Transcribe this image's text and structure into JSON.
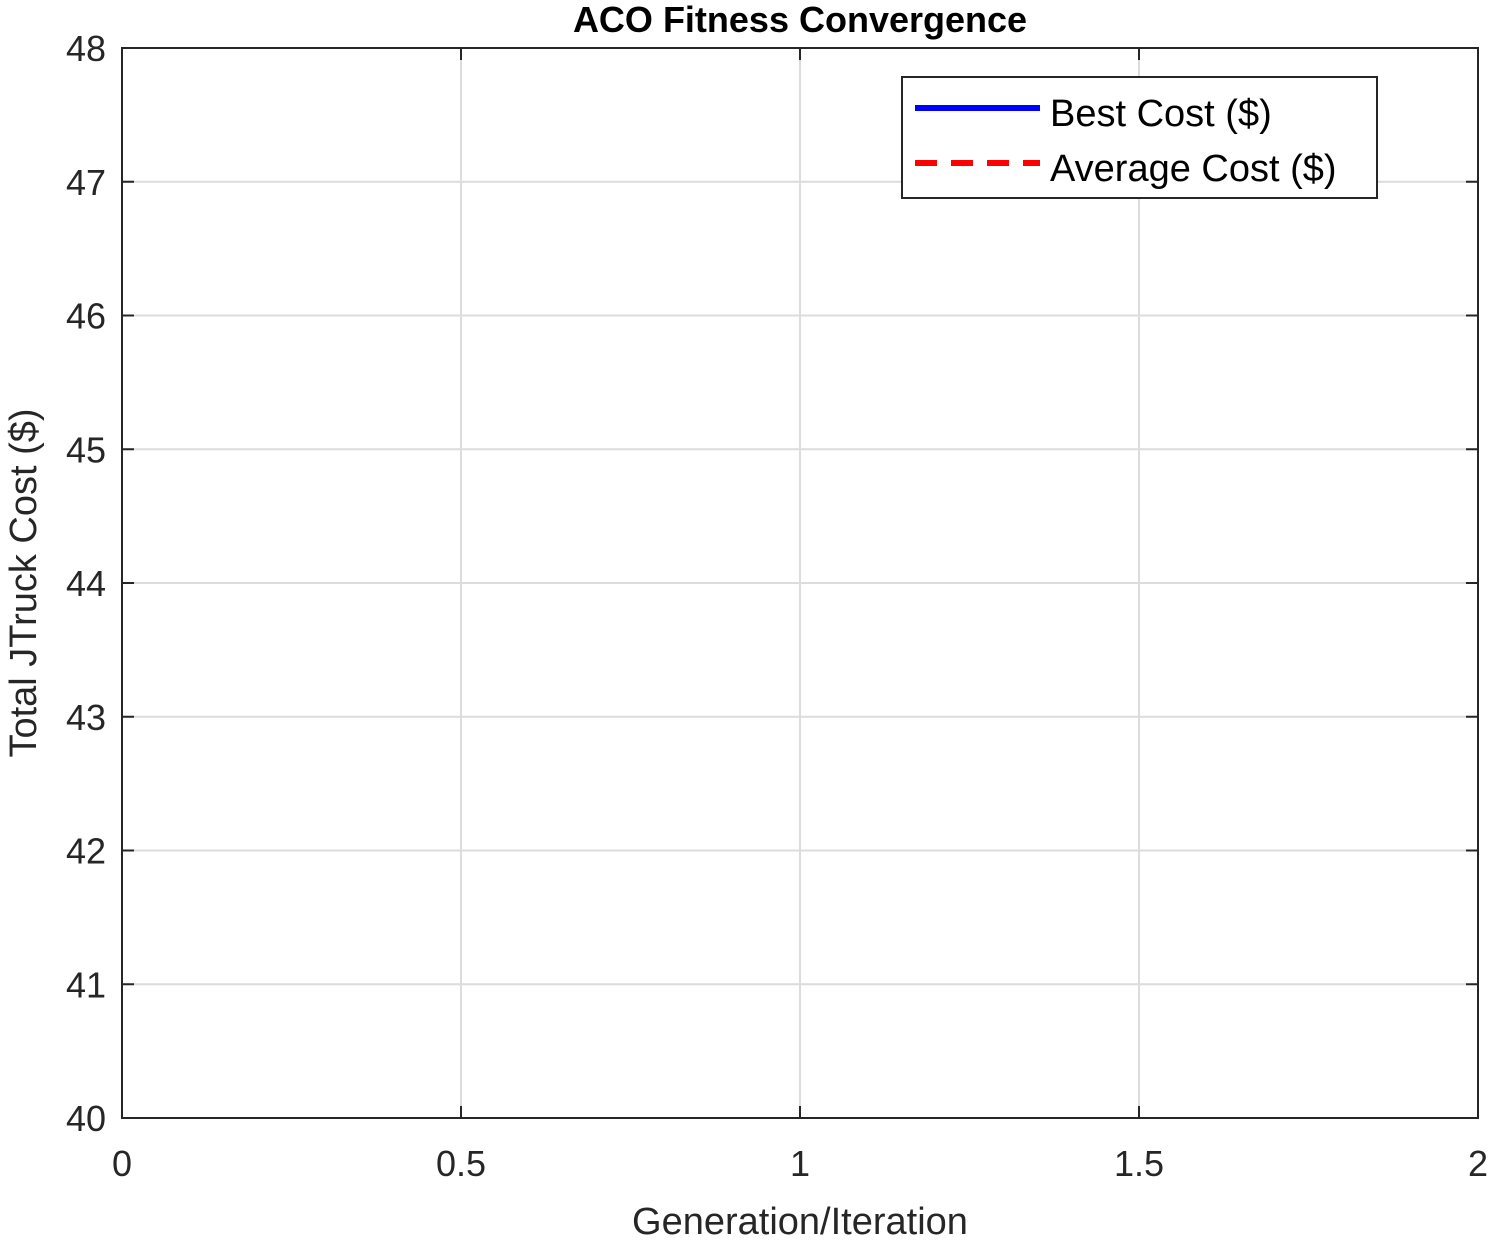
{
  "chart_data": {
    "type": "line",
    "title": "ACO Fitness Convergence",
    "xlabel": "Generation/Iteration",
    "ylabel": "Total JTruck Cost ($)",
    "xlim": [
      0,
      2
    ],
    "ylim": [
      40,
      48
    ],
    "xticks": [
      0,
      0.5,
      1,
      1.5,
      2
    ],
    "xtick_labels": [
      "0",
      "0.5",
      "1",
      "1.5",
      "2"
    ],
    "yticks": [
      40,
      41,
      42,
      43,
      44,
      45,
      46,
      47,
      48
    ],
    "ytick_labels": [
      "40",
      "41",
      "42",
      "43",
      "44",
      "45",
      "46",
      "47",
      "48"
    ],
    "grid": true,
    "legend_position": "top-right",
    "series": [
      {
        "name": "Best Cost ($)",
        "color": "#0000ff",
        "style": "solid",
        "x": [],
        "y": []
      },
      {
        "name": "Average Cost ($)",
        "color": "#ff0000",
        "style": "dashed",
        "x": [],
        "y": []
      }
    ]
  }
}
